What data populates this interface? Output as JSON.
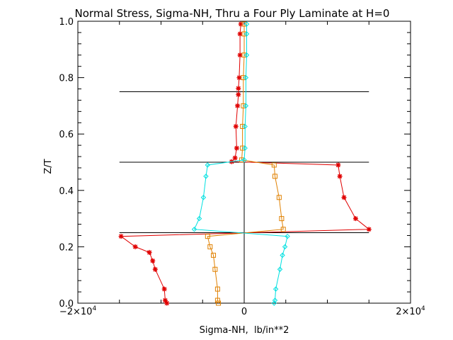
{
  "chart_data": {
    "type": "line",
    "title": "Normal Stress, Sigma-NH, Thru a Four Ply Laminate at H=0",
    "xlabel": "Sigma-NH,  lb/in**2",
    "ylabel": "Z/T",
    "xlim": [
      -20000,
      20000
    ],
    "ylim": [
      0.0,
      1.0
    ],
    "x_ticks": [
      {
        "value": -20000,
        "mantissa": "−2×10",
        "exp": "4"
      },
      {
        "value": 0,
        "mantissa": "0",
        "exp": ""
      },
      {
        "value": 20000,
        "mantissa": "2×10",
        "exp": "4"
      }
    ],
    "y_ticks": [
      "0.0",
      "0.2",
      "0.4",
      "0.6",
      "0.8",
      "1.0"
    ],
    "y_tick_values": [
      0.0,
      0.2,
      0.4,
      0.6,
      0.8,
      1.0
    ],
    "ply_interfaces": {
      "z": [
        0.25,
        0.5,
        0.75
      ],
      "x_range": [
        -15000,
        15000
      ]
    },
    "zero_line": {
      "x": 0,
      "y_range": [
        0.0,
        0.5
      ]
    },
    "series": [
      {
        "color": "#e00000",
        "marker": "asterisk",
        "points": [
          [
            -9300,
            0.0
          ],
          [
            -9500,
            0.01
          ],
          [
            -9600,
            0.05
          ],
          [
            -10700,
            0.12
          ],
          [
            -11000,
            0.15
          ],
          [
            -11400,
            0.18
          ],
          [
            -13100,
            0.2
          ],
          [
            -14800,
            0.237
          ],
          [
            15000,
            0.262
          ],
          [
            13400,
            0.3
          ],
          [
            12000,
            0.375
          ],
          [
            11500,
            0.45
          ],
          [
            11300,
            0.49
          ],
          [
            -1500,
            0.502
          ],
          [
            -1100,
            0.515
          ],
          [
            -900,
            0.55
          ],
          [
            -1000,
            0.627
          ],
          [
            -800,
            0.7
          ],
          [
            -700,
            0.74
          ],
          [
            -700,
            0.762
          ],
          [
            -600,
            0.8
          ],
          [
            -500,
            0.88
          ],
          [
            -500,
            0.955
          ],
          [
            -400,
            0.99
          ]
        ]
      },
      {
        "color": "#e08000",
        "marker": "square",
        "points": [
          [
            -3100,
            0.0
          ],
          [
            -3200,
            0.01
          ],
          [
            -3200,
            0.05
          ],
          [
            -3500,
            0.12
          ],
          [
            -3700,
            0.17
          ],
          [
            -4100,
            0.2
          ],
          [
            -4400,
            0.237
          ],
          [
            4700,
            0.262
          ],
          [
            4500,
            0.3
          ],
          [
            4200,
            0.375
          ],
          [
            3700,
            0.45
          ],
          [
            3600,
            0.49
          ],
          [
            -300,
            0.508
          ],
          [
            -200,
            0.55
          ],
          [
            -200,
            0.627
          ],
          [
            -100,
            0.7
          ],
          [
            -100,
            0.8
          ],
          [
            0,
            0.88
          ],
          [
            0,
            0.955
          ],
          [
            0,
            0.99
          ]
        ]
      },
      {
        "color": "#00e0e0",
        "marker": "diamond",
        "points": [
          [
            3600,
            0.0
          ],
          [
            3700,
            0.01
          ],
          [
            3800,
            0.05
          ],
          [
            4300,
            0.12
          ],
          [
            4600,
            0.17
          ],
          [
            4900,
            0.2
          ],
          [
            5200,
            0.237
          ],
          [
            -6000,
            0.262
          ],
          [
            -5400,
            0.3
          ],
          [
            -4900,
            0.375
          ],
          [
            -4600,
            0.45
          ],
          [
            -4400,
            0.49
          ],
          [
            0,
            0.508
          ],
          [
            100,
            0.55
          ],
          [
            100,
            0.627
          ],
          [
            200,
            0.7
          ],
          [
            200,
            0.8
          ],
          [
            300,
            0.88
          ],
          [
            300,
            0.955
          ],
          [
            300,
            0.99
          ]
        ]
      }
    ]
  }
}
